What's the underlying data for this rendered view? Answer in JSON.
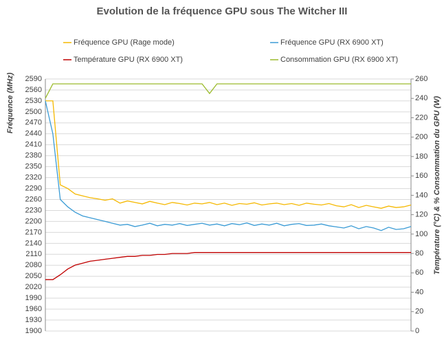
{
  "chart_data": {
    "type": "line",
    "title": "Evolution de la fréquence GPU sous The Witcher III",
    "y_label": "Fréquence (MHz)",
    "y2_label": "Température (°C) & % Consommation du GPU (W)",
    "ylim": [
      1900,
      2590
    ],
    "yticks": [
      1900,
      1930,
      1960,
      1990,
      2020,
      2050,
      2080,
      2110,
      2140,
      2170,
      2200,
      2230,
      2260,
      2290,
      2320,
      2350,
      2380,
      2410,
      2440,
      2470,
      2500,
      2530,
      2560,
      2590
    ],
    "y2lim": [
      0,
      260
    ],
    "y2ticks": [
      0,
      20,
      40,
      60,
      80,
      100,
      120,
      140,
      160,
      180,
      200,
      220,
      240,
      260
    ],
    "grid": true,
    "series": [
      {
        "name": "Fréquence GPU (Rage mode)",
        "color": "#f5b800",
        "values": [
          2530,
          2530,
          2300,
          2290,
          2275,
          2270,
          2265,
          2262,
          2258,
          2262,
          2250,
          2256,
          2252,
          2248,
          2255,
          2250,
          2246,
          2252,
          2249,
          2245,
          2250,
          2248,
          2252,
          2246,
          2250,
          2244,
          2249,
          2247,
          2251,
          2245,
          2248,
          2250,
          2246,
          2249,
          2244,
          2250,
          2247,
          2245,
          2249,
          2243,
          2240,
          2246,
          2238,
          2244,
          2240,
          2236,
          2242,
          2238,
          2240,
          2245
        ]
      },
      {
        "name": "Fréquence GPU (RX 6900 XT)",
        "color": "#3a9bd5",
        "values": [
          2530,
          2440,
          2260,
          2240,
          2225,
          2215,
          2210,
          2205,
          2200,
          2195,
          2190,
          2192,
          2186,
          2190,
          2195,
          2188,
          2192,
          2190,
          2194,
          2189,
          2192,
          2195,
          2190,
          2193,
          2188,
          2194,
          2191,
          2196,
          2189,
          2193,
          2190,
          2195,
          2188,
          2192,
          2194,
          2189,
          2190,
          2193,
          2188,
          2185,
          2182,
          2188,
          2180,
          2186,
          2182,
          2175,
          2184,
          2178,
          2180,
          2186
        ]
      },
      {
        "name": "Température GPU (RX 6900 XT)",
        "color": "#c00000",
        "axis": "y2",
        "values": [
          53,
          53,
          58,
          64,
          68,
          70,
          72,
          73,
          74,
          75,
          76,
          77,
          77,
          78,
          78,
          79,
          79,
          80,
          80,
          80,
          81,
          81,
          81,
          81,
          81,
          81,
          81,
          81,
          81,
          81,
          81,
          81,
          81,
          81,
          81,
          81,
          81,
          81,
          81,
          81,
          81,
          81,
          81,
          81,
          81,
          81,
          81,
          81,
          81,
          81
        ]
      },
      {
        "name": "Consommation GPU (RX 6900 XT)",
        "color": "#9bbb2b",
        "axis": "y2",
        "values": [
          240,
          255,
          255,
          255,
          255,
          255,
          255,
          255,
          255,
          255,
          255,
          255,
          255,
          255,
          255,
          255,
          255,
          255,
          255,
          255,
          255,
          255,
          245,
          255,
          255,
          255,
          255,
          255,
          255,
          255,
          255,
          255,
          255,
          255,
          255,
          255,
          255,
          255,
          255,
          255,
          255,
          255,
          255,
          255,
          255,
          255,
          255,
          255,
          255,
          255
        ]
      }
    ]
  }
}
